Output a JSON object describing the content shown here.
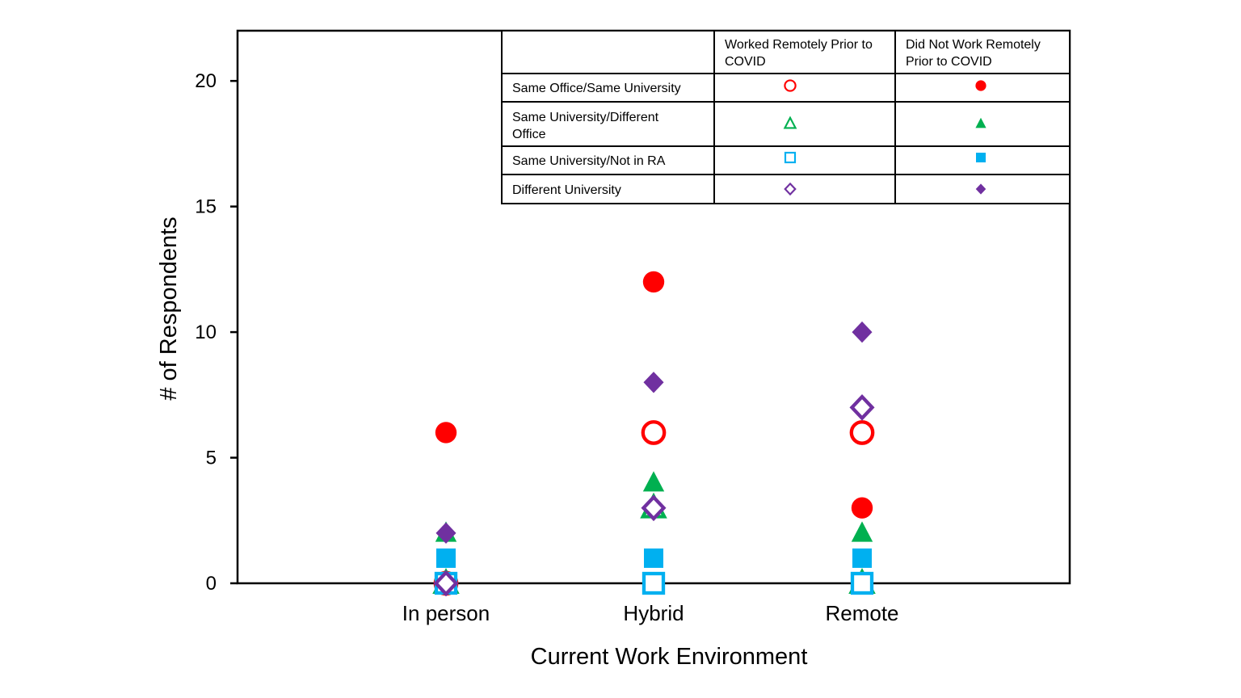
{
  "chart_data": {
    "type": "scatter",
    "xlabel": "Current Work Environment",
    "ylabel": "# of Respondents",
    "categories": [
      "In person",
      "Hybrid",
      "Remote"
    ],
    "ylim": [
      0,
      22
    ],
    "yticks": [
      0,
      5,
      10,
      15,
      20
    ],
    "grid": false,
    "legend": {
      "placement": "top-right",
      "column_headers": [
        "Worked Remotely Prior to COVID",
        "Did Not Work Remotely Prior to COVID"
      ],
      "rows": [
        {
          "label": "Same Office/Same University",
          "marker": "circle",
          "color": "#FF0000"
        },
        {
          "label": "Same University/Different Office",
          "marker": "triangle",
          "color": "#00B050"
        },
        {
          "label": "Same University/Not in RA",
          "marker": "square",
          "color": "#00B0F0"
        },
        {
          "label": "Different University",
          "marker": "diamond",
          "color": "#7030A0"
        }
      ]
    },
    "series": [
      {
        "group": "Same Office/Same University",
        "prior": "Worked Remotely Prior to COVID",
        "marker": "circle",
        "filled": false,
        "color": "#FF0000",
        "values": [
          0,
          6,
          6
        ]
      },
      {
        "group": "Same Office/Same University",
        "prior": "Did Not Work Remotely Prior to COVID",
        "marker": "circle",
        "filled": true,
        "color": "#FF0000",
        "values": [
          6,
          12,
          3
        ]
      },
      {
        "group": "Same University/Different Office",
        "prior": "Worked Remotely Prior to COVID",
        "marker": "triangle",
        "filled": false,
        "color": "#00B050",
        "values": [
          0,
          3,
          0
        ]
      },
      {
        "group": "Same University/Different Office",
        "prior": "Did Not Work Remotely Prior to COVID",
        "marker": "triangle",
        "filled": true,
        "color": "#00B050",
        "values": [
          2,
          4,
          2
        ]
      },
      {
        "group": "Same University/Not in RA",
        "prior": "Worked Remotely Prior to COVID",
        "marker": "square",
        "filled": false,
        "color": "#00B0F0",
        "values": [
          0,
          0,
          0
        ]
      },
      {
        "group": "Same University/Not in RA",
        "prior": "Did Not Work Remotely Prior to COVID",
        "marker": "square",
        "filled": true,
        "color": "#00B0F0",
        "values": [
          1,
          1,
          1
        ]
      },
      {
        "group": "Different University",
        "prior": "Worked Remotely Prior to COVID",
        "marker": "diamond",
        "filled": false,
        "color": "#7030A0",
        "values": [
          0,
          3,
          7
        ]
      },
      {
        "group": "Different University",
        "prior": "Did Not Work Remotely Prior to COVID",
        "marker": "diamond",
        "filled": true,
        "color": "#7030A0",
        "values": [
          2,
          8,
          10
        ]
      }
    ]
  }
}
